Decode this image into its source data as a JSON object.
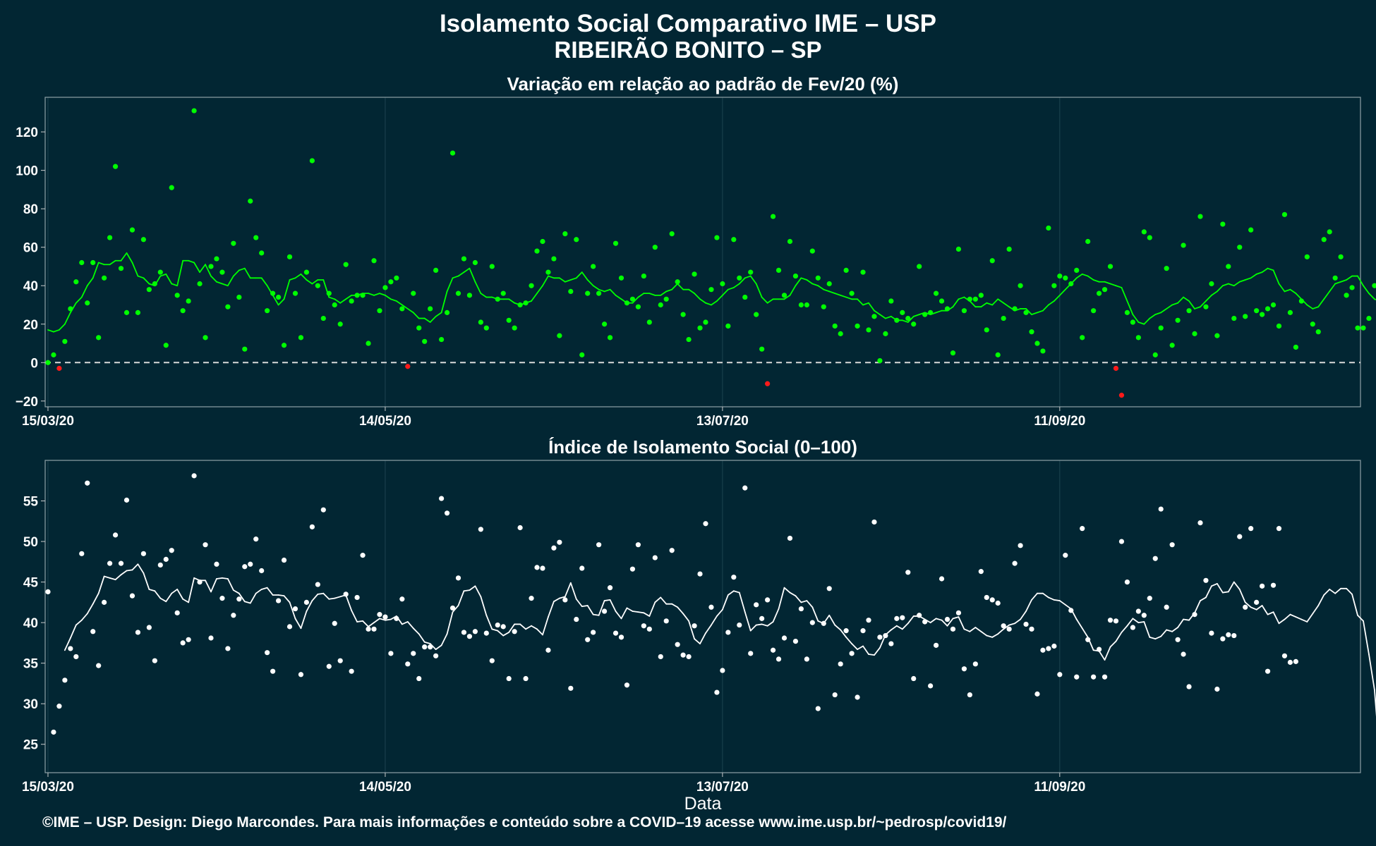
{
  "title": "Isolamento Social Comparativo IME – USP",
  "subtitle": "RIBEIRÃO BONITO – SP",
  "footer": "©IME – USP. Design: Diego Marcondes. Para mais informações e conteúdo sobre a COVID–19 acesse www.ime.usp.br/~pedrosp/covid19/",
  "colors": {
    "background": "#022633",
    "positive": "#00ff00",
    "negative": "#ff1a1a",
    "index": "#ffffff",
    "zero_line": "#d9d9d9",
    "grid": "#1d4450",
    "panel_border": "#8ea0a6"
  },
  "chart_data": [
    {
      "type": "scatter",
      "title": "Variação em relação ao padrão de Fev/20 (%)",
      "xlabel": "",
      "ylabel": "",
      "x_start": "2020-03-15",
      "x_ticks": [
        "15/03/20",
        "14/05/20",
        "13/07/20",
        "11/09/20"
      ],
      "xlim": [
        -0.5,
        233.5
      ],
      "ylim": [
        -23,
        138
      ],
      "y_ticks": [
        -20,
        0,
        20,
        40,
        60,
        80,
        100,
        120
      ],
      "reference_line": 0,
      "series": [
        {
          "values": [
            0,
            4,
            -3,
            11,
            28,
            42,
            52,
            31,
            52,
            13,
            44,
            65,
            102,
            49,
            26,
            69,
            26,
            64,
            38,
            41,
            47,
            9,
            91,
            35,
            27,
            32,
            131,
            41,
            13,
            50,
            54,
            47,
            29,
            62,
            34,
            7,
            84,
            65,
            57,
            27,
            36,
            34,
            9,
            55,
            36,
            13,
            47,
            105,
            40,
            23,
            36,
            30,
            20,
            51,
            32,
            35,
            35,
            10,
            53,
            27,
            39,
            42,
            44,
            28,
            -2,
            36,
            18,
            11,
            28,
            48,
            12,
            26,
            109,
            36,
            54,
            35,
            52,
            21,
            18,
            50,
            33,
            36,
            22,
            18,
            30,
            31,
            40,
            58,
            63,
            47,
            54,
            14,
            67,
            37,
            64,
            4,
            36,
            50,
            36,
            20,
            13,
            62,
            44,
            31,
            33,
            29,
            45,
            21,
            60,
            30,
            33,
            67,
            42,
            25,
            12,
            46,
            18,
            21,
            38,
            65,
            41,
            19,
            64,
            44,
            34,
            47,
            25,
            7,
            -11,
            76,
            48,
            35,
            63,
            45,
            30,
            30,
            58,
            44,
            29,
            41,
            19,
            15,
            48,
            36,
            19,
            47,
            17,
            24,
            1,
            15,
            32,
            22,
            26,
            23,
            20,
            50,
            25,
            26,
            36,
            32,
            28,
            5,
            59,
            27,
            33,
            33,
            35,
            17,
            53,
            4,
            23,
            59,
            28,
            40,
            26,
            16,
            10,
            6,
            70,
            40,
            45,
            44,
            41,
            48,
            13,
            63,
            27,
            36,
            38,
            50,
            -3,
            -17,
            26,
            21,
            13,
            68,
            65,
            4,
            18,
            49,
            9,
            22,
            61,
            27,
            15,
            76,
            29,
            41,
            14,
            72,
            50,
            23,
            60,
            24,
            69,
            27,
            25,
            28,
            30,
            19,
            77,
            26,
            8,
            32,
            55,
            20,
            16,
            64,
            68,
            44,
            55,
            35,
            39,
            18,
            18,
            23,
            40
          ]
        },
        {
          "values": [
            17,
            16,
            17,
            20,
            26,
            31,
            34,
            40,
            44,
            52,
            51,
            51,
            53,
            53,
            57,
            52,
            45,
            44,
            41,
            40,
            45,
            46,
            41,
            40,
            53,
            53,
            52,
            47,
            51,
            45,
            42,
            41,
            40,
            45,
            48,
            49,
            44,
            44,
            44,
            40,
            35,
            30,
            33,
            43,
            44,
            46,
            43,
            41,
            43,
            43,
            34,
            33,
            31,
            33,
            35,
            35,
            36,
            36,
            35,
            36,
            35,
            33,
            32,
            30,
            28,
            26,
            23,
            23,
            21,
            24,
            26,
            37,
            44,
            45,
            47,
            49,
            42,
            36,
            34,
            34,
            33,
            33,
            33,
            31,
            30,
            31,
            32,
            36,
            40,
            45,
            44,
            44,
            42,
            43,
            44,
            47,
            43,
            40,
            38,
            37,
            38,
            35,
            33,
            31,
            31,
            34,
            36,
            36,
            35,
            35,
            37,
            38,
            41,
            38,
            38,
            36,
            33,
            31,
            30,
            32,
            35,
            38,
            39,
            41,
            44,
            45,
            41,
            34,
            31,
            33,
            33,
            33,
            35,
            40,
            44,
            43,
            41,
            40,
            38,
            37,
            36,
            35,
            34,
            33,
            33,
            30,
            31,
            27,
            25,
            23,
            24,
            22,
            22,
            21,
            24,
            25,
            26,
            25,
            26,
            27,
            27,
            29,
            33,
            34,
            32,
            29,
            29,
            31,
            30,
            33,
            31,
            29,
            27,
            28,
            28,
            25,
            26,
            27,
            30,
            32,
            35,
            38,
            41,
            44,
            46,
            45,
            43,
            42,
            42,
            41,
            40,
            39,
            32,
            25,
            21,
            20,
            23,
            25,
            26,
            28,
            30,
            31,
            34,
            32,
            28,
            29,
            32,
            35,
            37,
            40,
            41,
            40,
            42,
            43,
            44,
            46,
            47,
            49,
            48,
            41,
            37,
            38,
            36,
            33,
            30,
            28,
            29,
            33,
            37,
            41,
            42,
            43,
            45,
            45,
            40,
            36,
            33,
            32
          ]
        }
      ]
    },
    {
      "type": "scatter",
      "title": "Índice de Isolamento Social (0–100)",
      "xlabel": "Data",
      "ylabel": "",
      "x_start": "2020-03-15",
      "x_ticks": [
        "15/03/20",
        "14/05/20",
        "13/07/20",
        "11/09/20"
      ],
      "xlim": [
        -0.5,
        233.5
      ],
      "ylim": [
        21.5,
        60
      ],
      "y_ticks": [
        25,
        30,
        35,
        40,
        45,
        50,
        55
      ],
      "series": [
        {
          "values": [
            43.8,
            26.5,
            29.7,
            32.9,
            36.8,
            35.8,
            48.5,
            57.2,
            38.9,
            34.7,
            42.5,
            47.3,
            50.8,
            47.3,
            55.1,
            43.3,
            38.8,
            48.5,
            39.4,
            35.3,
            47.1,
            47.8,
            48.9,
            41.2,
            37.5,
            37.9,
            58.1,
            45.0,
            49.6,
            38.1,
            47.2,
            43.0,
            36.8,
            40.9,
            42.9,
            46.9,
            47.2,
            50.3,
            46.4,
            36.3,
            34.0,
            42.7,
            47.7,
            39.5,
            41.7,
            33.6,
            42.5,
            51.8,
            44.7,
            53.9,
            34.6,
            39.9,
            35.3,
            43.5,
            34.0,
            43.1,
            48.3,
            39.2,
            39.2,
            41.0,
            40.7,
            36.2,
            40.5,
            42.9,
            34.9,
            36.2,
            33.1,
            37.0,
            37.0,
            35.9,
            55.3,
            53.5,
            41.8,
            45.5,
            38.8,
            38.3,
            38.9,
            51.5,
            38.7,
            35.3,
            39.7,
            39.5,
            33.1,
            38.9,
            51.7,
            33.1,
            43.0,
            46.8,
            46.7,
            36.6,
            49.2,
            49.9,
            42.8,
            31.9,
            40.4,
            46.7,
            37.9,
            38.8,
            49.6,
            41.4,
            44.3,
            38.7,
            38.2,
            32.3,
            46.6,
            49.6,
            39.6,
            39.2,
            48.0,
            35.8,
            40.2,
            48.9,
            37.3,
            36.0,
            35.8,
            39.6,
            46.0,
            52.2,
            41.9,
            31.4,
            34.1,
            38.8,
            45.6,
            39.7,
            56.6,
            36.2,
            42.2,
            40.5,
            42.8,
            36.6,
            35.5,
            38.1,
            50.4,
            37.7,
            41.7,
            35.5,
            40.0,
            29.4,
            39.9,
            44.2,
            31.1,
            34.9,
            39.0,
            36.2,
            30.8,
            39.0,
            40.3,
            52.4,
            38.2,
            38.4,
            37.4,
            40.5,
            40.6,
            46.2,
            33.1,
            40.9,
            40.1,
            32.2,
            37.2,
            45.4,
            40.4,
            39.2,
            41.2,
            34.3,
            31.1,
            34.9,
            46.3,
            43.1,
            42.8,
            42.4,
            39.6,
            39.2,
            47.3,
            49.5,
            39.8,
            39.2,
            31.2,
            36.6,
            36.8,
            37.1,
            33.6,
            48.3,
            41.5,
            33.3,
            51.6,
            37.9,
            33.3,
            36.7,
            33.3,
            40.3,
            40.2,
            50.0,
            45.0,
            39.4,
            41.4,
            40.9,
            43.0,
            47.9,
            54.0,
            41.9,
            49.6,
            37.9,
            36.1,
            32.1,
            41.0,
            52.3,
            45.2,
            38.7,
            31.8,
            38.0,
            38.5,
            38.4,
            50.6,
            41.9,
            51.6,
            42.5,
            44.5,
            34.0,
            44.6,
            51.6,
            35.9,
            35.1,
            35.2
          ]
        },
        {
          "values": [
            null,
            null,
            null,
            36.6,
            38.1,
            39.7,
            40.3,
            41.1,
            42.3,
            43.6,
            45.7,
            45.5,
            45.3,
            45.9,
            46.4,
            46.5,
            47.2,
            46.1,
            44.1,
            43.9,
            43.0,
            42.6,
            43.6,
            44.1,
            42.9,
            42.5,
            45.5,
            45.2,
            45.2,
            43.8,
            45.4,
            45.5,
            45.4,
            44.0,
            43.6,
            42.6,
            42.4,
            43.6,
            44.1,
            44.3,
            43.4,
            43.4,
            43.3,
            42.5,
            40.5,
            39.3,
            41.4,
            42.7,
            43.5,
            43.6,
            42.9,
            43.0,
            43.2,
            43.4,
            41.5,
            40.1,
            40.2,
            39.5,
            40.0,
            40.5,
            40.3,
            40.4,
            40.8,
            39.8,
            40.1,
            39.3,
            38.6,
            37.6,
            37.4,
            36.7,
            37.2,
            38.6,
            41.3,
            42.1,
            43.9,
            44.0,
            44.5,
            43.2,
            40.9,
            39.2,
            39.0,
            38.4,
            38.8,
            39.8,
            39.8,
            39.2,
            39.6,
            39.2,
            38.5,
            40.7,
            42.6,
            43.0,
            43.2,
            44.9,
            42.9,
            42.0,
            42.1,
            41.0,
            40.9,
            42.7,
            42.8,
            41.4,
            40.5,
            41.8,
            41.4,
            41.3,
            41.2,
            40.8,
            42.5,
            43.1,
            42.3,
            42.3,
            41.9,
            41.1,
            40.2,
            38.0,
            37.4,
            38.7,
            39.7,
            40.8,
            41.6,
            43.4,
            43.9,
            43.7,
            41.3,
            39.0,
            39.7,
            39.8,
            39.6,
            40.1,
            41.7,
            44.3,
            43.7,
            43.3,
            42.5,
            42.7,
            41.9,
            40.2,
            39.9,
            40.9,
            39.7,
            39.1,
            38.2,
            37.4,
            36.7,
            37.1,
            36.1,
            36.0,
            36.9,
            38.5,
            39.1,
            39.6,
            39.2,
            39.9,
            40.8,
            40.8,
            40.4,
            40.0,
            40.5,
            40.3,
            39.6,
            40.5,
            40.7,
            39.2,
            38.9,
            39.4,
            38.9,
            38.4,
            38.2,
            38.6,
            39.2,
            39.7,
            39.9,
            40.4,
            41.4,
            42.8,
            43.6,
            43.6,
            43.1,
            42.8,
            42.7,
            42.2,
            41.7,
            40.4,
            39.3,
            38.2,
            36.6,
            36.5,
            35.4,
            37.0,
            37.7,
            38.8,
            39.6,
            40.5,
            40.0,
            40.1,
            38.2,
            38.0,
            38.3,
            39.1,
            38.9,
            39.4,
            40.4,
            40.3,
            41.2,
            42.7,
            43.1,
            44.5,
            44.8,
            43.7,
            43.8,
            45.0,
            44.1,
            42.5,
            41.9,
            41.6,
            42.1,
            41.0,
            41.3,
            39.9,
            40.4,
            41.0,
            40.7,
            40.4,
            40.1,
            41.1,
            42.1,
            43.4,
            44.1,
            43.6,
            44.2,
            44.2,
            43.5,
            40.9,
            40.2,
            36.1,
            31.7,
            22.9
          ]
        }
      ]
    }
  ]
}
